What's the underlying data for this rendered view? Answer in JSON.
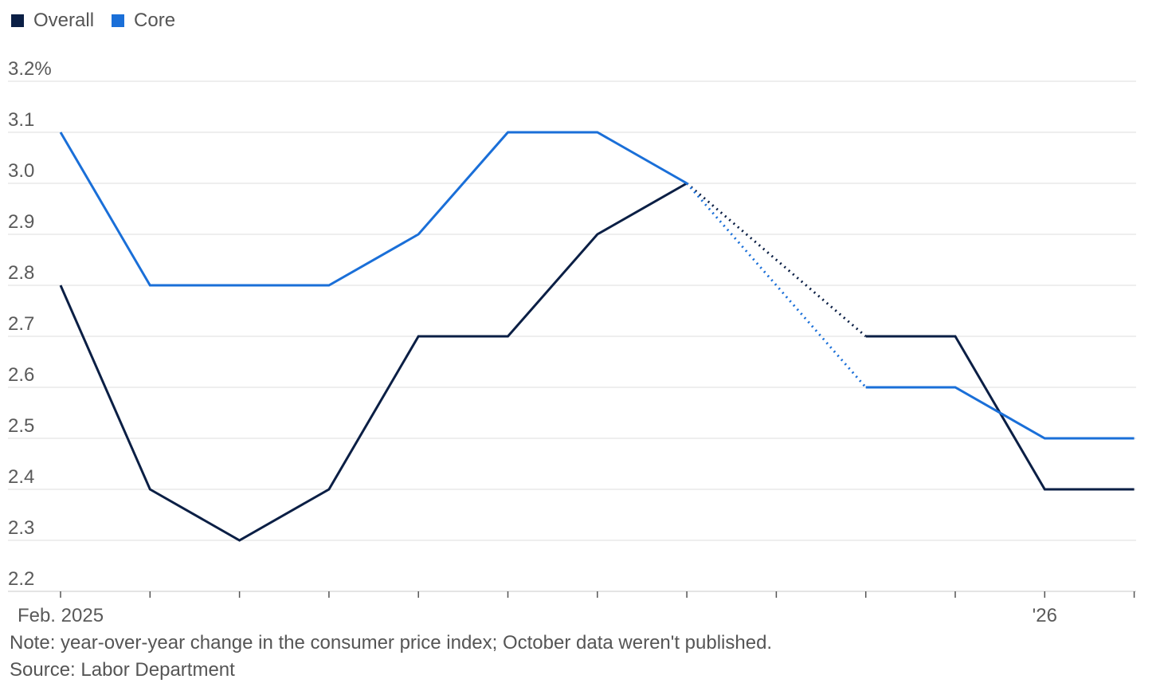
{
  "legend": [
    {
      "name": "Overall",
      "color": "#0b1f45"
    },
    {
      "name": "Core",
      "color": "#1a6fd8"
    }
  ],
  "note": "Note: year-over-year change in the consumer price index; October data weren't published.",
  "source": "Source: Labor Department",
  "chart_data": {
    "type": "line",
    "title": "",
    "xlabel": "",
    "ylabel": "",
    "ylim": [
      2.2,
      3.2
    ],
    "yticks": [
      3.2,
      3.1,
      3.0,
      2.9,
      2.8,
      2.7,
      2.6,
      2.5,
      2.4,
      2.3,
      2.2
    ],
    "ytick_labels": [
      "3.2%",
      "3.1",
      "3.0",
      "2.9",
      "2.8",
      "2.7",
      "2.6",
      "2.5",
      "2.4",
      "2.3",
      "2.2"
    ],
    "x": [
      "2025-02",
      "2025-03",
      "2025-04",
      "2025-05",
      "2025-06",
      "2025-07",
      "2025-08",
      "2025-09",
      "2025-10",
      "2025-11",
      "2025-12",
      "2026-01",
      "2026-02"
    ],
    "xtick_labels": [
      {
        "x": "2025-02",
        "label": "Feb. 2025"
      },
      {
        "x": "2026-01",
        "label": "'26"
      }
    ],
    "grid": true,
    "legend_position": "top-left",
    "series": [
      {
        "name": "Overall",
        "color": "#0b1f45",
        "values": [
          2.8,
          2.4,
          2.3,
          2.4,
          2.7,
          2.7,
          2.9,
          3.0,
          null,
          2.7,
          2.7,
          2.4,
          2.4
        ]
      },
      {
        "name": "Core",
        "color": "#1a6fd8",
        "values": [
          3.1,
          2.8,
          2.8,
          2.8,
          2.9,
          3.1,
          3.1,
          3.0,
          null,
          2.6,
          2.6,
          2.5,
          2.5
        ]
      }
    ]
  }
}
